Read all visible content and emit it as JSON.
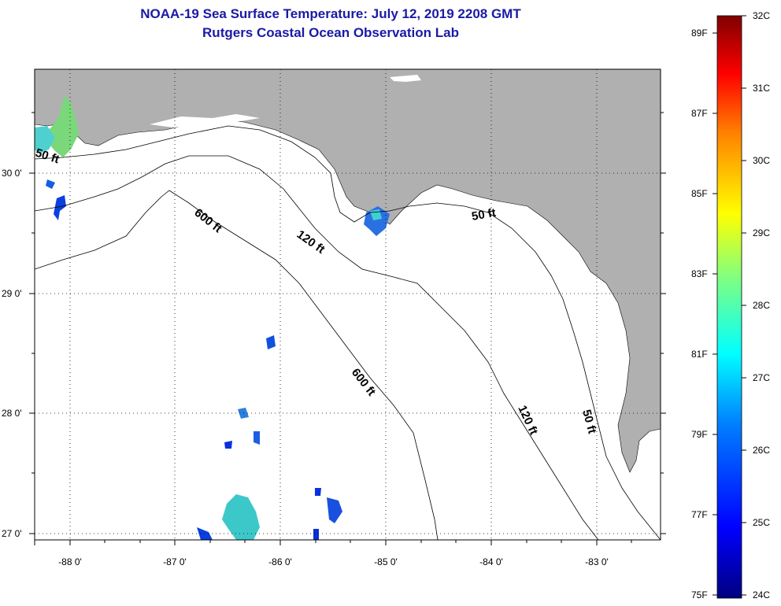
{
  "title": {
    "line1": "NOAA-19 Sea Surface Temperature:  July 12, 2019 2208 GMT",
    "line2": "Rutgers Coastal Ocean Observation Lab"
  },
  "axes": {
    "x_ticks": [
      "-88 0'",
      "-87 0'",
      "-86 0'",
      "-85 0'",
      "-84 0'",
      "-83 0'"
    ],
    "y_ticks": [
      "30 0'",
      "29 0'",
      "28 0'",
      "27 0'"
    ]
  },
  "contour_labels": [
    "50 ft",
    "600 ft",
    "120 ft",
    "50 ft",
    "600 ft",
    "120 ft",
    "50 ft"
  ],
  "colorbar": {
    "fahrenheit_labels": [
      "89F",
      "87F",
      "85F",
      "83F",
      "81F",
      "79F",
      "77F",
      "75F"
    ],
    "celsius_labels": [
      "32C",
      "31C",
      "30C",
      "29C",
      "28C",
      "27C",
      "26C",
      "25C",
      "24C"
    ],
    "colors": [
      "#7f0000",
      "#ff0000",
      "#ff8000",
      "#ffff00",
      "#80ff80",
      "#00ffff",
      "#0080ff",
      "#0000ff",
      "#00007f"
    ]
  },
  "colors": {
    "land": "#b0b0b0",
    "ocean": "#ffffff",
    "title": "#1a1aa6"
  }
}
